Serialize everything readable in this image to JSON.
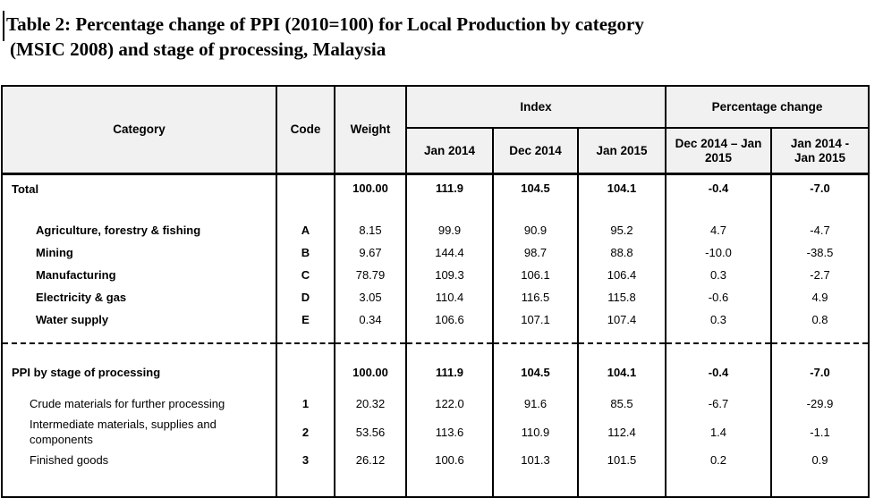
{
  "page": {
    "title_line1": "Table 2: Percentage change of PPI (2010=100) for Local Production by category",
    "title_line2": "(MSIC 2008) and stage of processing, Malaysia"
  },
  "table": {
    "headers": {
      "category": "Category",
      "code": "Code",
      "weight": "Weight",
      "index_group": "Index",
      "pct_group": "Percentage change",
      "col_jan2014": "Jan 2014",
      "col_dec2014": "Dec 2014",
      "col_jan2015": "Jan 2015",
      "col_chg_mom": "Dec 2014 – Jan 2015",
      "col_chg_yoy": "Jan 2014 - Jan 2015"
    },
    "rows": [
      {
        "label": "Total",
        "code": "",
        "weight": "100.00",
        "jan2014": "111.9",
        "dec2014": "104.5",
        "jan2015": "104.1",
        "chg_mom": "-0.4",
        "chg_yoy": "-7.0"
      },
      {
        "label": "Agriculture, forestry & fishing",
        "code": "A",
        "weight": "8.15",
        "jan2014": "99.9",
        "dec2014": "90.9",
        "jan2015": "95.2",
        "chg_mom": "4.7",
        "chg_yoy": "-4.7"
      },
      {
        "label": "Mining",
        "code": "B",
        "weight": "9.67",
        "jan2014": "144.4",
        "dec2014": "98.7",
        "jan2015": "88.8",
        "chg_mom": "-10.0",
        "chg_yoy": "-38.5"
      },
      {
        "label": "Manufacturing",
        "code": "C",
        "weight": "78.79",
        "jan2014": "109.3",
        "dec2014": "106.1",
        "jan2015": "106.4",
        "chg_mom": "0.3",
        "chg_yoy": "-2.7"
      },
      {
        "label": "Electricity & gas",
        "code": "D",
        "weight": "3.05",
        "jan2014": "110.4",
        "dec2014": "116.5",
        "jan2015": "115.8",
        "chg_mom": "-0.6",
        "chg_yoy": "4.9"
      },
      {
        "label": "Water supply",
        "code": "E",
        "weight": "0.34",
        "jan2014": "106.6",
        "dec2014": "107.1",
        "jan2015": "107.4",
        "chg_mom": "0.3",
        "chg_yoy": "0.8"
      },
      {
        "label": "PPI by stage of processing",
        "code": "",
        "weight": "100.00",
        "jan2014": "111.9",
        "dec2014": "104.5",
        "jan2015": "104.1",
        "chg_mom": "-0.4",
        "chg_yoy": "-7.0"
      },
      {
        "label": "Crude materials for further processing",
        "code": "1",
        "weight": "20.32",
        "jan2014": "122.0",
        "dec2014": "91.6",
        "jan2015": "85.5",
        "chg_mom": "-6.7",
        "chg_yoy": "-29.9"
      },
      {
        "label": "Intermediate materials, supplies and components",
        "code": "2",
        "weight": "53.56",
        "jan2014": "113.6",
        "dec2014": "110.9",
        "jan2015": "112.4",
        "chg_mom": "1.4",
        "chg_yoy": "-1.1"
      },
      {
        "label": "Finished goods",
        "code": "3",
        "weight": "26.12",
        "jan2014": "100.6",
        "dec2014": "101.3",
        "jan2015": "101.5",
        "chg_mom": "0.2",
        "chg_yoy": "0.9"
      }
    ]
  }
}
